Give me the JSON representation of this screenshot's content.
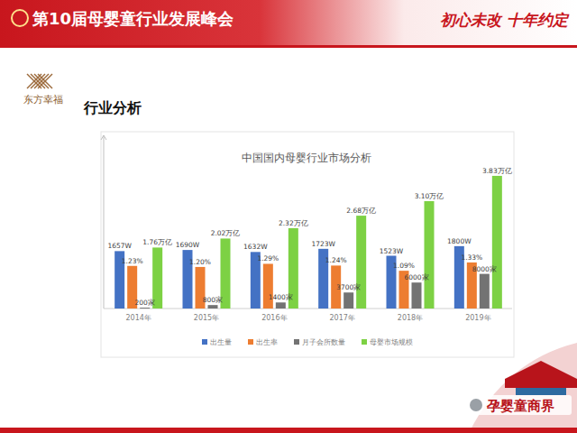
{
  "slide": {
    "header": "第10届母婴童行业发展峰会",
    "slogan": "初心未改 十年约定",
    "logo": "东方幸福",
    "heading": "行业分析",
    "watermark": "孕婴童商界"
  },
  "chart_data": {
    "type": "bar",
    "title": "中国国内母婴行业市场分析",
    "categories": [
      "2014年",
      "2015年",
      "2016年",
      "2017年",
      "2018年",
      "2019年"
    ],
    "data_labels": true,
    "legend": "bottom",
    "tick_labels": "x",
    "grid": false,
    "series": [
      {
        "name": "出生量",
        "color": "#4472c4",
        "ylim": [
          0,
          5000
        ],
        "values": [
          1657,
          1690,
          1632,
          1723,
          1523,
          1800
        ],
        "value_labels": [
          "1657W",
          "1690W",
          "1632W",
          "1723W",
          "1523W",
          "1800W"
        ]
      },
      {
        "name": "出生率",
        "color": "#ed7d31",
        "ylim": [
          0,
          5
        ],
        "values": [
          1.23,
          1.2,
          1.29,
          1.24,
          1.09,
          1.33
        ],
        "value_labels": [
          "1.23%",
          "1.20%",
          "1.29%",
          "1.24%",
          "1.09%",
          "1.33%"
        ]
      },
      {
        "name": "月子会所数量",
        "color": "#737373",
        "ylim": [
          0,
          40000
        ],
        "values": [
          200,
          800,
          1400,
          3700,
          6000,
          8000
        ],
        "value_labels": [
          "200家",
          "800家",
          "1400家",
          "3700家",
          "6000家",
          "8000家"
        ]
      },
      {
        "name": "母婴市场规模",
        "color": "#7dd144",
        "ylim": [
          0,
          5
        ],
        "values": [
          1.76,
          2.02,
          2.32,
          2.68,
          3.1,
          3.83
        ],
        "value_labels": [
          "1.76万亿",
          "2.02万亿",
          "2.32万亿",
          "2.68万亿",
          "3.10万亿",
          "3.83万亿"
        ]
      }
    ]
  }
}
